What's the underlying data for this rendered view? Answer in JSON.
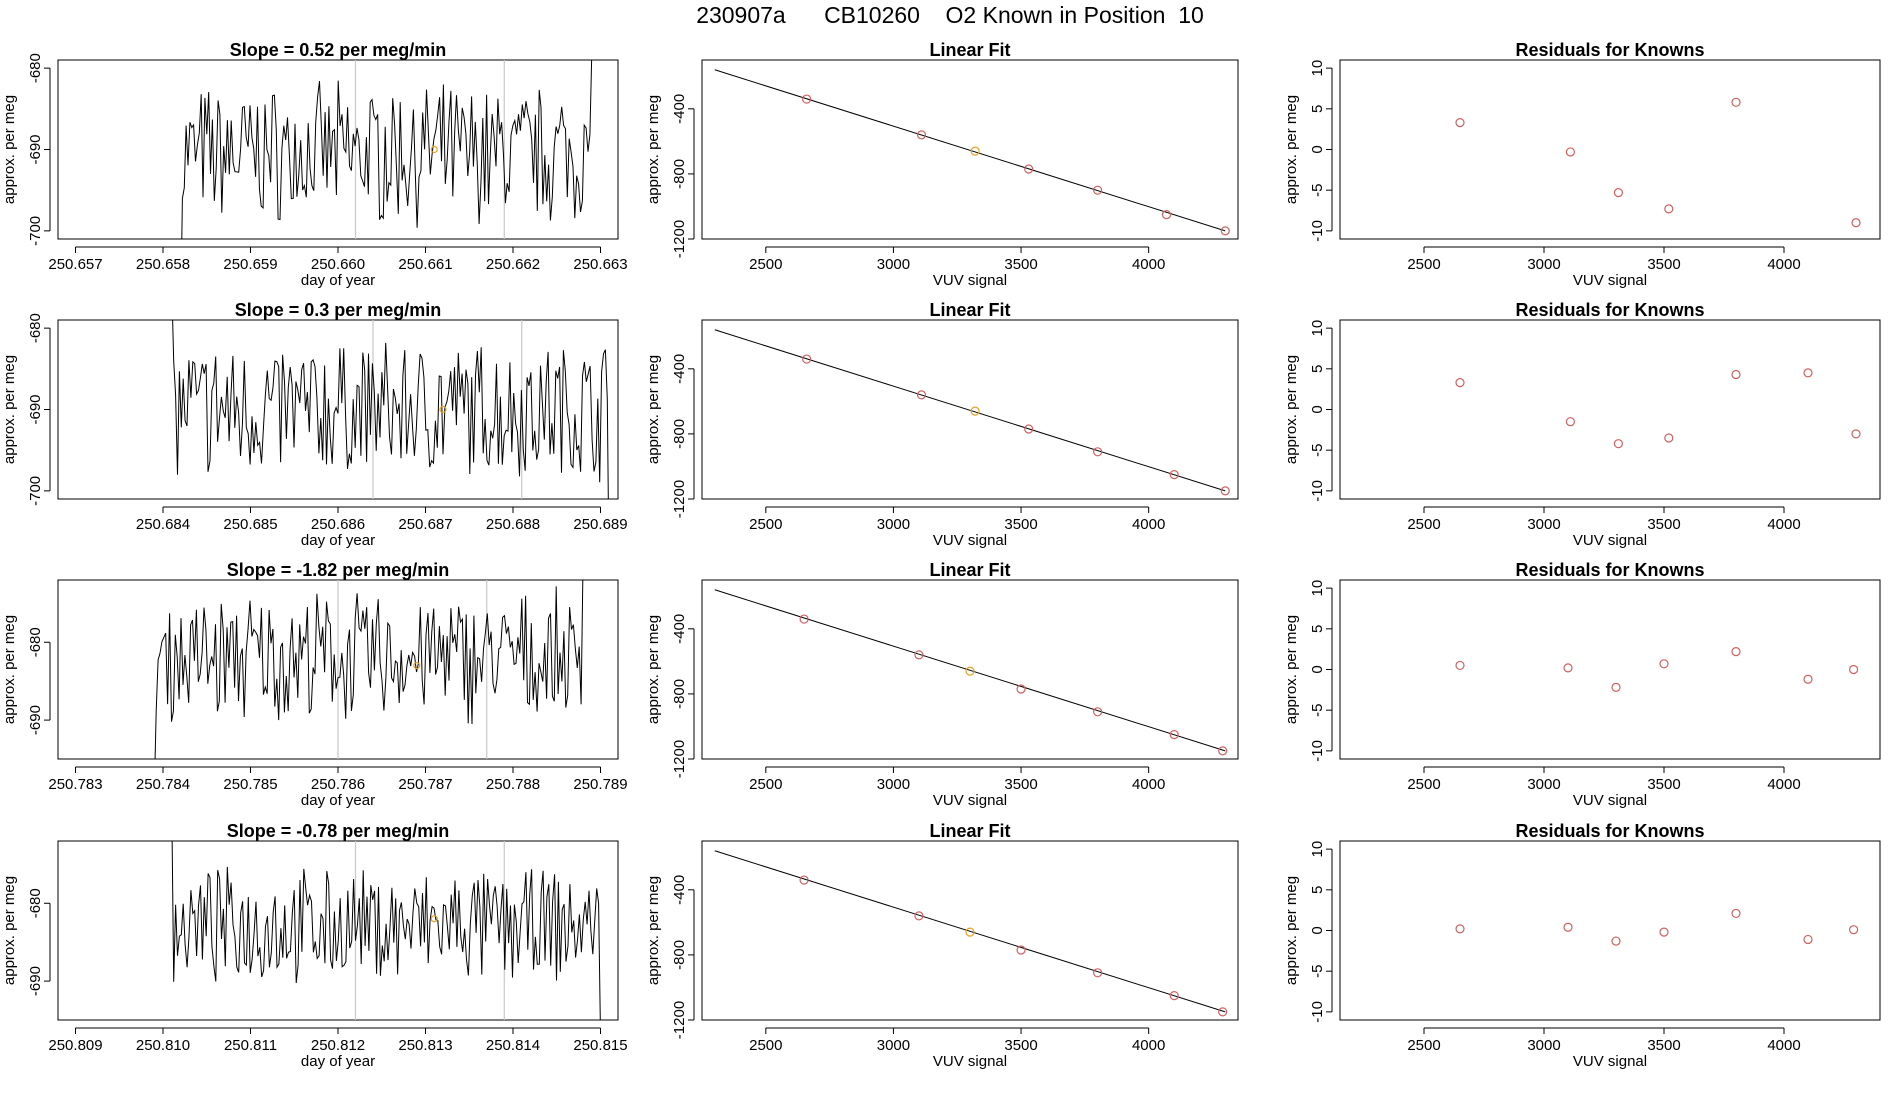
{
  "figure": {
    "title": "230907a      CB10260    O2 Known in Position  10"
  },
  "colors": {
    "trace": "#000000",
    "point": "#d0605e",
    "highlight": "#e8a020",
    "marker_line": "#c8c8c8"
  },
  "chart_data": [
    {
      "type": "line",
      "title": "Slope =  0.52  per meg/min",
      "xlabel": "day of year",
      "ylabel": "approx. per meg",
      "xlim": [
        250.6568,
        250.6632
      ],
      "ylim": [
        -701,
        -679
      ],
      "xticks": [
        250.657,
        250.658,
        250.659,
        250.66,
        250.661,
        250.662,
        250.663
      ],
      "xtick_labels": [
        "250.657",
        "250.658",
        "250.659",
        "250.660",
        "250.661",
        "250.662",
        "250.663"
      ],
      "yticks": [
        -700,
        -690,
        -680
      ],
      "ytick_labels": [
        "-700",
        "-690",
        "-680"
      ],
      "series": {
        "x_start": 250.6582,
        "x_end": 250.6629,
        "count": 220,
        "mean": -690.5,
        "spread": 8,
        "first": -712,
        "last": -678
      },
      "markers": [
        250.6602,
        250.6619
      ],
      "highlight_point": {
        "x": 250.6611,
        "y": -690
      }
    },
    {
      "type": "scatter",
      "title": "Linear Fit",
      "xlabel": "VUV signal",
      "ylabel": "approx. per meg",
      "xlim": [
        2250,
        4350
      ],
      "ylim": [
        -1200,
        -100
      ],
      "xticks": [
        2500,
        3000,
        3500,
        4000
      ],
      "xtick_labels": [
        "2500",
        "3000",
        "3500",
        "4000"
      ],
      "yticks": [
        -1200,
        -800,
        -400
      ],
      "ytick_labels": [
        "-1200",
        "-800",
        "-400"
      ],
      "line": {
        "x": [
          2300,
          4300
        ],
        "y": [
          -160,
          -1150
        ]
      },
      "points": {
        "x": [
          2660,
          3110,
          3320,
          3530,
          3800,
          4070,
          4300
        ],
        "y": [
          -340,
          -560,
          -660,
          -770,
          -900,
          -1050,
          -1150
        ]
      },
      "highlight_index": 2
    },
    {
      "type": "scatter",
      "title": "Residuals for Knowns",
      "xlabel": "VUV signal",
      "ylabel": "approx. per meg",
      "xlim": [
        2150,
        4400
      ],
      "ylim": [
        -11,
        11
      ],
      "xticks": [
        2500,
        3000,
        3500,
        4000
      ],
      "xtick_labels": [
        "2500",
        "3000",
        "3500",
        "4000"
      ],
      "yticks": [
        -10,
        -5,
        0,
        5,
        10
      ],
      "ytick_labels": [
        "-10",
        "-5",
        "0",
        "5",
        "10"
      ],
      "points": {
        "x": [
          2650,
          3110,
          3310,
          3520,
          3800,
          4300
        ],
        "y": [
          3.3,
          -0.3,
          -5.3,
          -7.3,
          5.8,
          -9.0
        ]
      }
    },
    {
      "type": "line",
      "title": "Slope =  0.3  per meg/min",
      "xlabel": "day of year",
      "ylabel": "approx. per meg",
      "xlim": [
        250.6828,
        250.6892
      ],
      "ylim": [
        -701,
        -679
      ],
      "xticks": [
        250.684,
        250.685,
        250.686,
        250.687,
        250.688,
        250.689
      ],
      "xtick_labels": [
        "250.684",
        "250.685",
        "250.686",
        "250.687",
        "250.688",
        "250.689"
      ],
      "yticks": [
        -700,
        -690,
        -680
      ],
      "ytick_labels": [
        "-700",
        "-690",
        "-680"
      ],
      "series": {
        "x_start": 250.6841,
        "x_end": 250.6891,
        "count": 230,
        "mean": -690,
        "spread": 8,
        "first": -675,
        "last": -712
      },
      "markers": [
        250.6864,
        250.6881
      ],
      "highlight_point": {
        "x": 250.6872,
        "y": -690
      }
    },
    {
      "type": "scatter",
      "title": "Linear Fit",
      "xlabel": "VUV signal",
      "ylabel": "approx. per meg",
      "xlim": [
        2250,
        4350
      ],
      "ylim": [
        -1200,
        -100
      ],
      "xticks": [
        2500,
        3000,
        3500,
        4000
      ],
      "xtick_labels": [
        "2500",
        "3000",
        "3500",
        "4000"
      ],
      "yticks": [
        -1200,
        -800,
        -400
      ],
      "ytick_labels": [
        "-1200",
        "-800",
        "-400"
      ],
      "line": {
        "x": [
          2300,
          4300
        ],
        "y": [
          -160,
          -1150
        ]
      },
      "points": {
        "x": [
          2660,
          3110,
          3320,
          3530,
          3800,
          4100,
          4300
        ],
        "y": [
          -340,
          -560,
          -660,
          -770,
          -910,
          -1050,
          -1150
        ]
      },
      "highlight_index": 2
    },
    {
      "type": "scatter",
      "title": "Residuals for Knowns",
      "xlabel": "VUV signal",
      "ylabel": "approx. per meg",
      "xlim": [
        2150,
        4400
      ],
      "ylim": [
        -11,
        11
      ],
      "xticks": [
        2500,
        3000,
        3500,
        4000
      ],
      "xtick_labels": [
        "2500",
        "3000",
        "3500",
        "4000"
      ],
      "yticks": [
        -10,
        -5,
        0,
        5,
        10
      ],
      "ytick_labels": [
        "-10",
        "-5",
        "0",
        "5",
        "10"
      ],
      "points": {
        "x": [
          2650,
          3110,
          3310,
          3520,
          3800,
          4100,
          4300
        ],
        "y": [
          3.3,
          -1.5,
          -4.2,
          -3.5,
          4.3,
          4.5,
          -3.0
        ]
      }
    },
    {
      "type": "line",
      "title": "Slope =  -1.82  per meg/min",
      "xlabel": "day of year",
      "ylabel": "approx. per meg",
      "xlim": [
        250.7828,
        250.7892
      ],
      "ylim": [
        -695,
        -672
      ],
      "xticks": [
        250.783,
        250.784,
        250.785,
        250.786,
        250.787,
        250.788,
        250.789
      ],
      "xtick_labels": [
        "250.783",
        "250.784",
        "250.785",
        "250.786",
        "250.787",
        "250.788",
        "250.789"
      ],
      "yticks": [
        -690,
        -680
      ],
      "ytick_labels": [
        "-690",
        "-680"
      ],
      "series": {
        "x_start": 250.7839,
        "x_end": 250.7888,
        "count": 225,
        "mean": -682,
        "spread": 8,
        "first": -700,
        "last": -670
      },
      "markers": [
        250.786,
        250.7877
      ],
      "highlight_point": {
        "x": 250.7869,
        "y": -683
      }
    },
    {
      "type": "scatter",
      "title": "Linear Fit",
      "xlabel": "VUV signal",
      "ylabel": "approx. per meg",
      "xlim": [
        2250,
        4350
      ],
      "ylim": [
        -1200,
        -100
      ],
      "xticks": [
        2500,
        3000,
        3500,
        4000
      ],
      "xtick_labels": [
        "2500",
        "3000",
        "3500",
        "4000"
      ],
      "yticks": [
        -1200,
        -800,
        -400
      ],
      "ytick_labels": [
        "-1200",
        "-800",
        "-400"
      ],
      "line": {
        "x": [
          2300,
          4300
        ],
        "y": [
          -160,
          -1150
        ]
      },
      "points": {
        "x": [
          2650,
          3100,
          3300,
          3500,
          3800,
          4100,
          4290
        ],
        "y": [
          -340,
          -560,
          -660,
          -770,
          -910,
          -1050,
          -1150
        ]
      },
      "highlight_index": 2
    },
    {
      "type": "scatter",
      "title": "Residuals for Knowns",
      "xlabel": "VUV signal",
      "ylabel": "approx. per meg",
      "xlim": [
        2150,
        4400
      ],
      "ylim": [
        -11,
        11
      ],
      "xticks": [
        2500,
        3000,
        3500,
        4000
      ],
      "xtick_labels": [
        "2500",
        "3000",
        "3500",
        "4000"
      ],
      "yticks": [
        -10,
        -5,
        0,
        5,
        10
      ],
      "ytick_labels": [
        "-10",
        "-5",
        "0",
        "5",
        "10"
      ],
      "points": {
        "x": [
          2650,
          3100,
          3300,
          3500,
          3800,
          4100,
          4290
        ],
        "y": [
          0.5,
          0.2,
          -2.2,
          0.7,
          2.2,
          -1.2,
          0.0
        ]
      }
    },
    {
      "type": "line",
      "title": "Slope =  -0.78  per meg/min",
      "xlabel": "day of year",
      "ylabel": "approx. per meg",
      "xlim": [
        250.8088,
        250.8152
      ],
      "ylim": [
        -695,
        -672
      ],
      "xticks": [
        250.809,
        250.81,
        250.811,
        250.812,
        250.813,
        250.814,
        250.815
      ],
      "xtick_labels": [
        "250.809",
        "250.810",
        "250.811",
        "250.812",
        "250.813",
        "250.814",
        "250.815"
      ],
      "yticks": [
        -690,
        -680
      ],
      "ytick_labels": [
        "-690",
        "-680"
      ],
      "series": {
        "x_start": 250.8101,
        "x_end": 250.815,
        "count": 225,
        "mean": -683,
        "spread": 7,
        "first": -668,
        "last": -697
      },
      "markers": [
        250.8122,
        250.8139
      ],
      "highlight_point": {
        "x": 250.8131,
        "y": -682
      }
    },
    {
      "type": "scatter",
      "title": "Linear Fit",
      "xlabel": "VUV signal",
      "ylabel": "approx. per meg",
      "xlim": [
        2250,
        4350
      ],
      "ylim": [
        -1200,
        -100
      ],
      "xticks": [
        2500,
        3000,
        3500,
        4000
      ],
      "xtick_labels": [
        "2500",
        "3000",
        "3500",
        "4000"
      ],
      "yticks": [
        -1200,
        -800,
        -400
      ],
      "ytick_labels": [
        "-1200",
        "-800",
        "-400"
      ],
      "line": {
        "x": [
          2300,
          4300
        ],
        "y": [
          -160,
          -1150
        ]
      },
      "points": {
        "x": [
          2650,
          3100,
          3300,
          3500,
          3800,
          4100,
          4290
        ],
        "y": [
          -340,
          -560,
          -660,
          -770,
          -910,
          -1050,
          -1150
        ]
      },
      "highlight_index": 2
    },
    {
      "type": "scatter",
      "title": "Residuals for Knowns",
      "xlabel": "VUV signal",
      "ylabel": "approx. per meg",
      "xlim": [
        2150,
        4400
      ],
      "ylim": [
        -11,
        11
      ],
      "xticks": [
        2500,
        3000,
        3500,
        4000
      ],
      "xtick_labels": [
        "2500",
        "3000",
        "3500",
        "4000"
      ],
      "yticks": [
        -10,
        -5,
        0,
        5,
        10
      ],
      "ytick_labels": [
        "-10",
        "-5",
        "0",
        "5",
        "10"
      ],
      "points": {
        "x": [
          2650,
          3100,
          3300,
          3500,
          3800,
          4100,
          4290
        ],
        "y": [
          0.2,
          0.4,
          -1.3,
          -0.2,
          2.1,
          -1.1,
          0.1
        ]
      }
    }
  ]
}
